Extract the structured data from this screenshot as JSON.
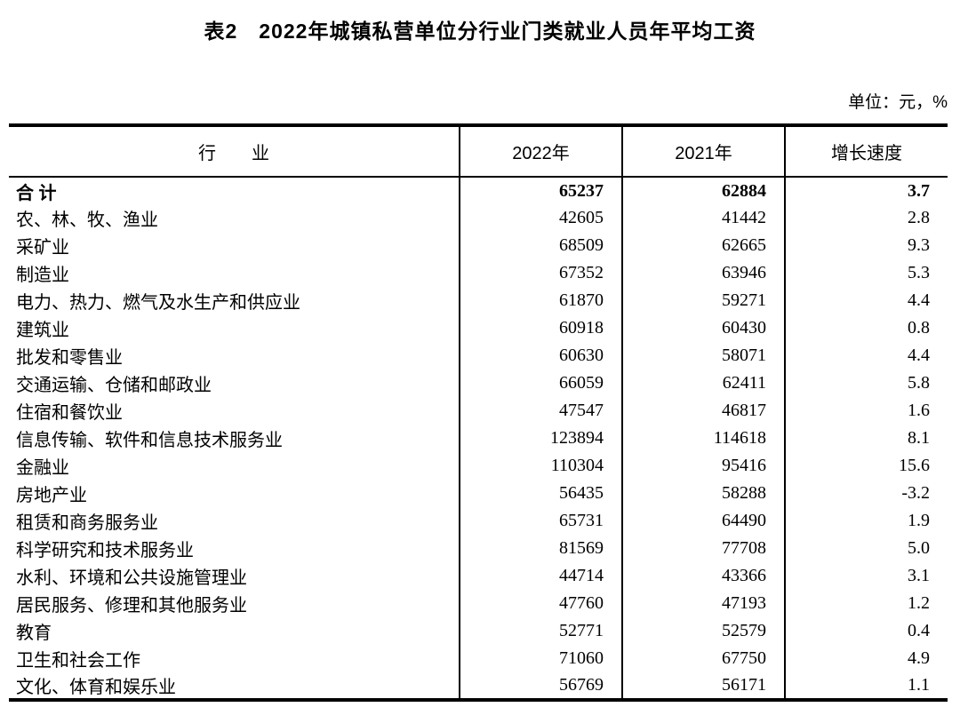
{
  "page": {
    "title": "表2　2022年城镇私营单位分行业门类就业人员年平均工资",
    "unit_note": "单位：元，%"
  },
  "table": {
    "columns": [
      "行　　业",
      "2022年",
      "2021年",
      "增长速度"
    ],
    "rows": [
      {
        "industry": "合  计",
        "y2022": "65237",
        "y2021": "62884",
        "growth": "3.7",
        "bold": true
      },
      {
        "industry": "农、林、牧、渔业",
        "y2022": "42605",
        "y2021": "41442",
        "growth": "2.8",
        "bold": false
      },
      {
        "industry": "采矿业",
        "y2022": "68509",
        "y2021": "62665",
        "growth": "9.3",
        "bold": false
      },
      {
        "industry": "制造业",
        "y2022": "67352",
        "y2021": "63946",
        "growth": "5.3",
        "bold": false
      },
      {
        "industry": "电力、热力、燃气及水生产和供应业",
        "y2022": "61870",
        "y2021": "59271",
        "growth": "4.4",
        "bold": false
      },
      {
        "industry": "建筑业",
        "y2022": "60918",
        "y2021": "60430",
        "growth": "0.8",
        "bold": false
      },
      {
        "industry": "批发和零售业",
        "y2022": "60630",
        "y2021": "58071",
        "growth": "4.4",
        "bold": false
      },
      {
        "industry": "交通运输、仓储和邮政业",
        "y2022": "66059",
        "y2021": "62411",
        "growth": "5.8",
        "bold": false
      },
      {
        "industry": "住宿和餐饮业",
        "y2022": "47547",
        "y2021": "46817",
        "growth": "1.6",
        "bold": false
      },
      {
        "industry": "信息传输、软件和信息技术服务业",
        "y2022": "123894",
        "y2021": "114618",
        "growth": "8.1",
        "bold": false
      },
      {
        "industry": "金融业",
        "y2022": "110304",
        "y2021": "95416",
        "growth": "15.6",
        "bold": false
      },
      {
        "industry": "房地产业",
        "y2022": "56435",
        "y2021": "58288",
        "growth": "-3.2",
        "bold": false
      },
      {
        "industry": "租赁和商务服务业",
        "y2022": "65731",
        "y2021": "64490",
        "growth": "1.9",
        "bold": false
      },
      {
        "industry": "科学研究和技术服务业",
        "y2022": "81569",
        "y2021": "77708",
        "growth": "5.0",
        "bold": false
      },
      {
        "industry": "水利、环境和公共设施管理业",
        "y2022": "44714",
        "y2021": "43366",
        "growth": "3.1",
        "bold": false
      },
      {
        "industry": "居民服务、修理和其他服务业",
        "y2022": "47760",
        "y2021": "47193",
        "growth": "1.2",
        "bold": false
      },
      {
        "industry": "教育",
        "y2022": "52771",
        "y2021": "52579",
        "growth": "0.4",
        "bold": false
      },
      {
        "industry": "卫生和社会工作",
        "y2022": "71060",
        "y2021": "67750",
        "growth": "4.9",
        "bold": false
      },
      {
        "industry": "文化、体育和娱乐业",
        "y2022": "56769",
        "y2021": "56171",
        "growth": "1.1",
        "bold": false
      }
    ]
  }
}
